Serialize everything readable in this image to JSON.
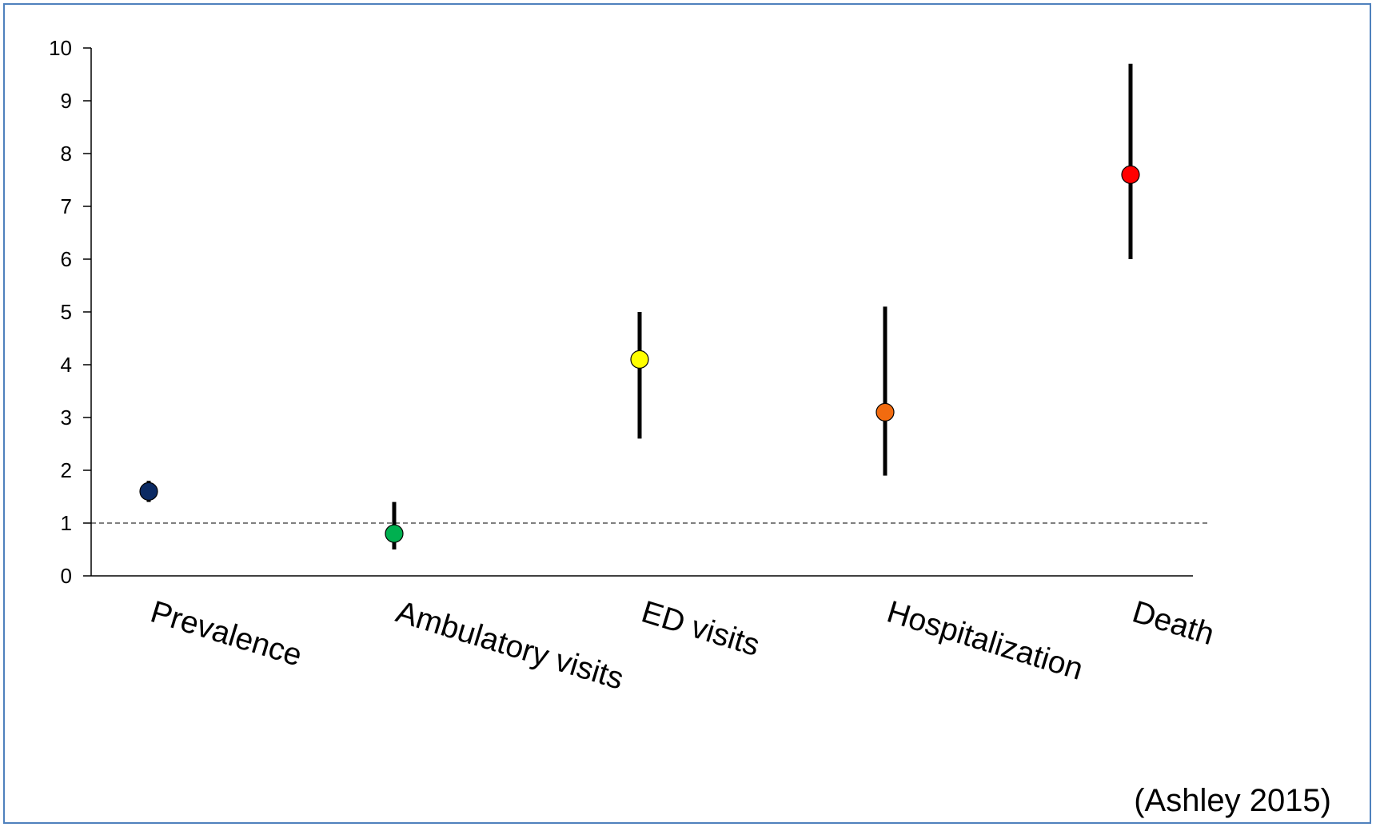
{
  "chart_data": {
    "type": "scatter",
    "title": "",
    "xlabel": "",
    "ylabel": "",
    "categories": [
      "Prevalence",
      "Ambulatory visits",
      "ED visits",
      "Hospitalization",
      "Death"
    ],
    "points": [
      {
        "category": "Prevalence",
        "value": 1.6,
        "low": 1.4,
        "high": 1.8,
        "color": "#0b2a63"
      },
      {
        "category": "Ambulatory visits",
        "value": 0.8,
        "low": 0.5,
        "high": 1.4,
        "color": "#00b050"
      },
      {
        "category": "ED visits",
        "value": 4.1,
        "low": 2.6,
        "high": 5.0,
        "color": "#ffff00"
      },
      {
        "category": "Hospitalization",
        "value": 3.1,
        "low": 1.9,
        "high": 5.1,
        "color": "#f26b0f"
      },
      {
        "category": "Death",
        "value": 7.6,
        "low": 6.0,
        "high": 9.7,
        "color": "#ff0000"
      }
    ],
    "ylim": [
      0,
      10
    ],
    "yticks": [
      "0",
      "1",
      "2",
      "3",
      "4",
      "5",
      "6",
      "7",
      "8",
      "9",
      "10"
    ],
    "reference_line": 1,
    "grid": false,
    "legend": "none"
  },
  "citation": "(Ashley 2015)"
}
